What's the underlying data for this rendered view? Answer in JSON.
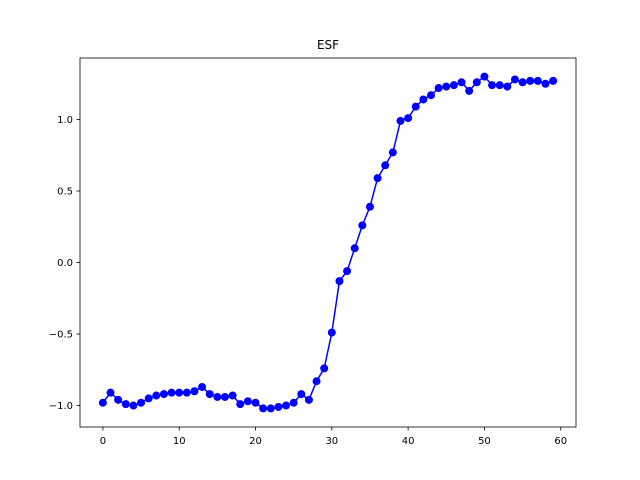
{
  "chart_data": {
    "type": "line",
    "title": "ESF",
    "xlabel": "",
    "ylabel": "",
    "xlim": [
      -3.0,
      62.0
    ],
    "ylim": [
      -1.15,
      1.43
    ],
    "grid": false,
    "x_ticks": [
      0,
      10,
      20,
      30,
      40,
      50,
      60
    ],
    "x_tick_labels": [
      "0",
      "10",
      "20",
      "30",
      "40",
      "50",
      "60"
    ],
    "y_ticks": [
      -1.0,
      -0.5,
      0.0,
      0.5,
      1.0
    ],
    "y_tick_labels": [
      "−1.0",
      "−0.5",
      "0.0",
      "0.5",
      "1.0"
    ],
    "series": [
      {
        "color": "#0000ff",
        "marker": "circle",
        "x": [
          0,
          1,
          2,
          3,
          4,
          5,
          6,
          7,
          8,
          9,
          10,
          11,
          12,
          13,
          14,
          15,
          16,
          17,
          18,
          19,
          20,
          21,
          22,
          23,
          24,
          25,
          26,
          27,
          28,
          29,
          30,
          31,
          32,
          33,
          34,
          35,
          36,
          37,
          38,
          39,
          40,
          41,
          42,
          43,
          44,
          45,
          46,
          47,
          48,
          49,
          50,
          51,
          52,
          53,
          54,
          55,
          56,
          57,
          58,
          59
        ],
        "values": [
          -0.98,
          -0.91,
          -0.96,
          -0.99,
          -1.0,
          -0.98,
          -0.95,
          -0.93,
          -0.92,
          -0.91,
          -0.91,
          -0.91,
          -0.9,
          -0.87,
          -0.92,
          -0.94,
          -0.94,
          -0.93,
          -0.99,
          -0.97,
          -0.98,
          -1.02,
          -1.02,
          -1.01,
          -1.0,
          -0.98,
          -0.92,
          -0.96,
          -0.83,
          -0.74,
          -0.49,
          -0.13,
          -0.06,
          0.1,
          0.26,
          0.39,
          0.59,
          0.68,
          0.77,
          0.99,
          1.01,
          1.09,
          1.14,
          1.17,
          1.22,
          1.23,
          1.24,
          1.26,
          1.2,
          1.26,
          1.3,
          1.24,
          1.24,
          1.23,
          1.28,
          1.26,
          1.27,
          1.27,
          1.25,
          1.27
        ]
      }
    ]
  }
}
